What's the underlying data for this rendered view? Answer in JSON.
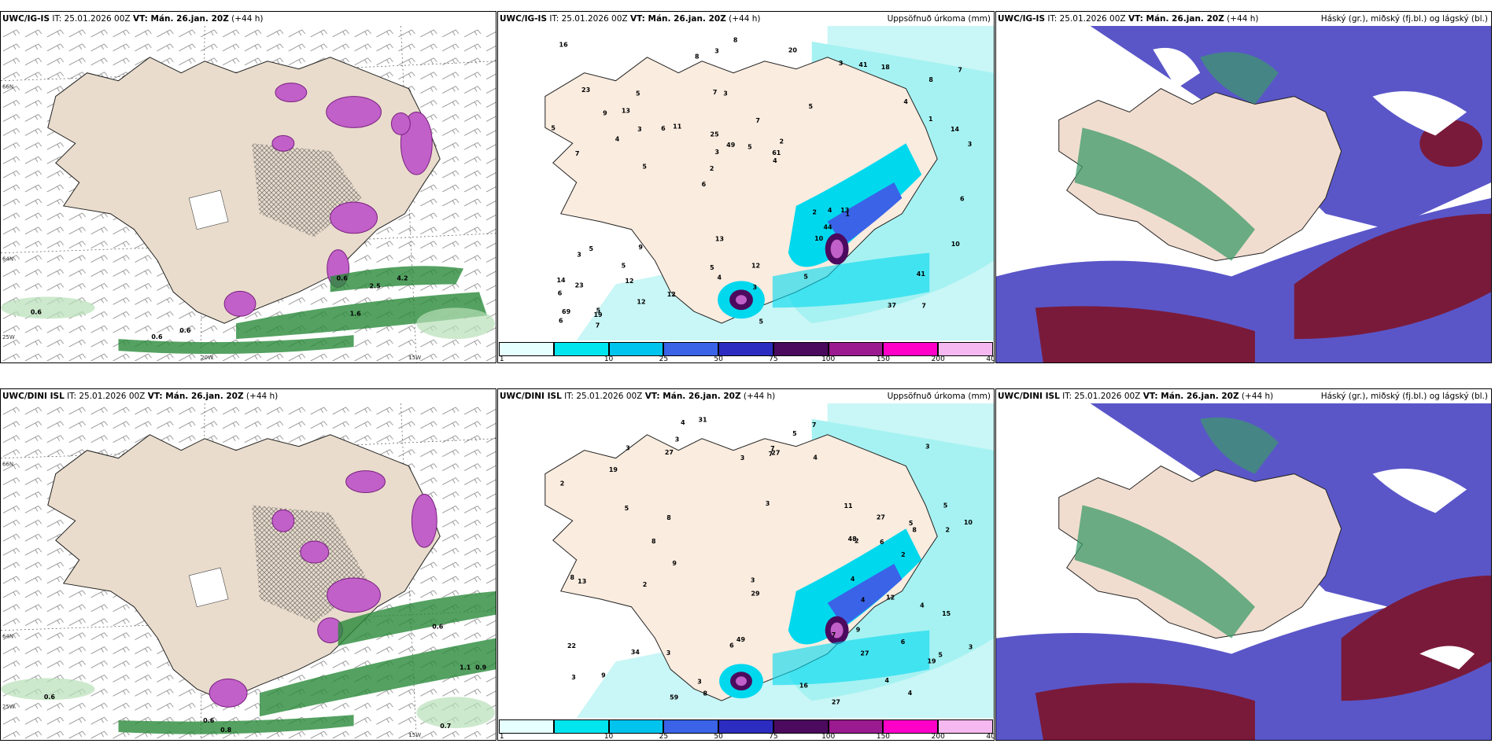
{
  "top": {
    "left": {
      "model": "UWC/IG-IS",
      "it": "IT: 25.01.2026 00Z",
      "vt": "VT: Mán. 26.jan. 20Z",
      "lead": "(+44 h)",
      "right": ""
    },
    "mid": {
      "model": "UWC/IG-IS",
      "it": "IT: 25.01.2026 00Z",
      "vt": "VT: Mán. 26.jan. 20Z",
      "lead": "(+44 h)",
      "right": "Uppsöfnuð úrkoma (mm)"
    },
    "cloud": {
      "model": "UWC/IG-IS",
      "it": "IT: 25.01.2026 00Z",
      "vt": "VT: Mán. 26.jan. 20Z",
      "lead": "(+44 h)",
      "right": "Háský (gr.), miðský (fj.bl.) og lágský (bl.)"
    }
  },
  "bottom": {
    "left": {
      "model": "UWC/DINI ISL",
      "it": "IT: 25.01.2026 00Z",
      "vt": "VT: Mán. 26.jan. 20Z",
      "lead": "(+44 h)",
      "right": ""
    },
    "mid": {
      "model": "UWC/DINI ISL",
      "it": "IT: 25.01.2026 00Z",
      "vt": "VT: Mán. 26.jan. 20Z",
      "lead": "(+44 h)",
      "right": "Uppsöfnuð úrkoma (mm)"
    },
    "cloud": {
      "model": "UWC/DINI ISL",
      "it": "IT: 25.01.2026 00Z",
      "vt": "VT: Mán. 26.jan. 20Z",
      "lead": "(+44 h)",
      "right": "Háský (gr.), miðský (fj.bl.) og lágský (bl.)"
    }
  },
  "axis_labels": {
    "lat66": "66N",
    "lat64": "64N",
    "lat63": "63N",
    "lon20": "20W",
    "lon15": "15W",
    "lon25": "25W"
  },
  "colorbar": {
    "ticks": [
      "1",
      "10",
      "25",
      "50",
      "75",
      "100",
      "150",
      "200",
      "400"
    ],
    "colors": [
      "#e6ffff",
      "#00e5ee",
      "#00c4ee",
      "#3a63e8",
      "#2c2cc0",
      "#4b0a5e",
      "#9b1a8f",
      "#ff00c8",
      "#f5b8f0"
    ]
  },
  "precip_labels_top": [
    "7",
    "7",
    "8",
    "6",
    "5",
    "5",
    "7",
    "7",
    "5",
    "11",
    "6",
    "12",
    "3",
    "2",
    "1",
    "23",
    "3",
    "3",
    "2",
    "1",
    "2",
    "5",
    "3",
    "5",
    "3",
    "9",
    "37",
    "41",
    "13",
    "5",
    "6",
    "4",
    "10",
    "12",
    "14",
    "61",
    "69",
    "4",
    "4",
    "3",
    "4",
    "7",
    "44",
    "5",
    "5",
    "7",
    "6",
    "12",
    "18",
    "8",
    "5",
    "5",
    "13",
    "41",
    "19",
    "20",
    "8",
    "49",
    "10",
    "13",
    "12",
    "4",
    "3",
    "14",
    "16",
    "9",
    "6",
    "25",
    "3",
    "5",
    "23"
  ],
  "precip_labels_bottom": [
    "6",
    "5",
    "5",
    "3",
    "3",
    "3",
    "5",
    "3",
    "3",
    "5",
    "2",
    "2",
    "2",
    "8",
    "22",
    "19",
    "19",
    "27",
    "49",
    "8",
    "8",
    "13",
    "16",
    "48",
    "3",
    "6",
    "5",
    "4",
    "11",
    "3",
    "2",
    "27",
    "59",
    "3",
    "4",
    "4",
    "2",
    "3",
    "4",
    "9",
    "12",
    "6",
    "7",
    "8",
    "15",
    "4",
    "9",
    "7",
    "8",
    "27",
    "34",
    "29",
    "27",
    "10",
    "7",
    "4",
    "4",
    "3",
    "27",
    "7",
    "31",
    "9"
  ],
  "precip_area_labels": {
    "left_top": [
      "0.6",
      "0.6",
      "0.6",
      "4.2",
      "2.5",
      "1.6",
      "0.6"
    ],
    "left_bottom": [
      "0.6",
      "0.6",
      "0.6",
      "1.1",
      "0.9",
      "0.8",
      "0.7"
    ]
  }
}
